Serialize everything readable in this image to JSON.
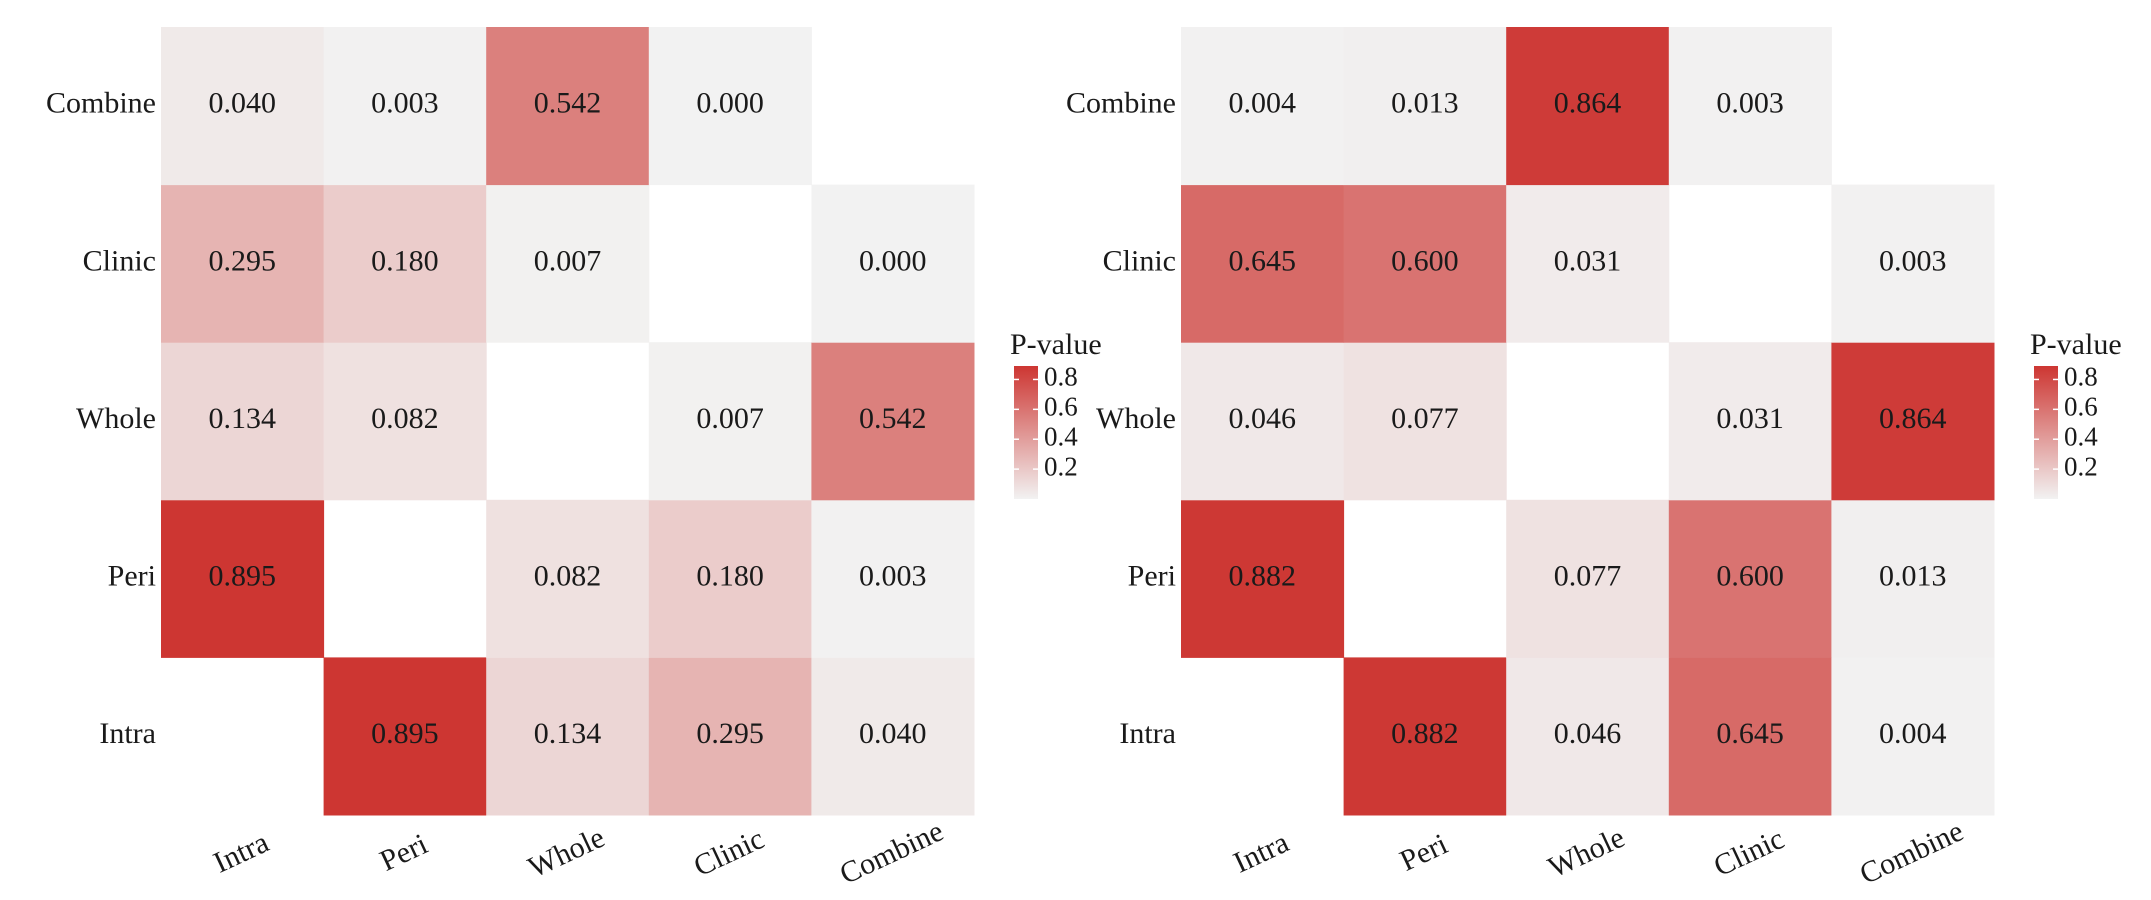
{
  "chart_data": [
    {
      "type": "heatmap",
      "x_categories": [
        "Intra",
        "Peri",
        "Whole",
        "Clinic",
        "Combine"
      ],
      "y_categories": [
        "Intra",
        "Peri",
        "Whole",
        "Clinic",
        "Combine"
      ],
      "values": [
        [
          null,
          0.895,
          0.134,
          0.295,
          0.04
        ],
        [
          0.895,
          null,
          0.082,
          0.18,
          0.003
        ],
        [
          0.134,
          0.082,
          null,
          0.007,
          0.542
        ],
        [
          0.295,
          0.18,
          0.007,
          null,
          0
        ],
        [
          0.04,
          0.003,
          0.542,
          0,
          null
        ]
      ],
      "value_labels": [
        [
          null,
          "0.895",
          "0.134",
          "0.295",
          "0.040"
        ],
        [
          null,
          null,
          "0.082",
          "0.180",
          "0.003"
        ],
        [
          null,
          null,
          null,
          "0.007",
          "0.542"
        ],
        [
          null,
          null,
          null,
          null,
          "0.000"
        ],
        [
          null,
          null,
          null,
          null,
          null
        ]
      ],
      "legend_title": "P-value",
      "colorbar": {
        "lim": [
          0,
          0.89
        ],
        "ticks": [
          0.2,
          0.4,
          0.6,
          0.8
        ],
        "colors": [
          "#f2f2f2",
          "#cd3632"
        ]
      }
    },
    {
      "type": "heatmap",
      "x_categories": [
        "Intra",
        "Peri",
        "Whole",
        "Clinic",
        "Combine"
      ],
      "y_categories": [
        "Intra",
        "Peri",
        "Whole",
        "Clinic",
        "Combine"
      ],
      "values": [
        [
          null,
          0.882,
          0.046,
          0.645,
          0.004
        ],
        [
          0.882,
          null,
          0.077,
          0.6,
          0.013
        ],
        [
          0.046,
          0.077,
          null,
          0.031,
          0.864
        ],
        [
          0.645,
          0.6,
          0.031,
          null,
          0.003
        ],
        [
          0.004,
          0.013,
          0.864,
          0.003,
          null
        ]
      ],
      "value_labels": [
        [
          null,
          "0.882",
          "0.046",
          "0.645",
          "0.004"
        ],
        [
          null,
          null,
          "0.077",
          "0.600",
          "0.013"
        ],
        [
          null,
          null,
          null,
          "0.031",
          "0.864"
        ],
        [
          null,
          null,
          null,
          null,
          "0.003"
        ],
        [
          null,
          null,
          null,
          null,
          null
        ]
      ],
      "legend_title": "P-value",
      "colorbar": {
        "lim": [
          0,
          0.89
        ],
        "ticks": [
          0.2,
          0.4,
          0.6,
          0.8
        ],
        "colors": [
          "#f2f2f2",
          "#cd3632"
        ]
      }
    }
  ]
}
